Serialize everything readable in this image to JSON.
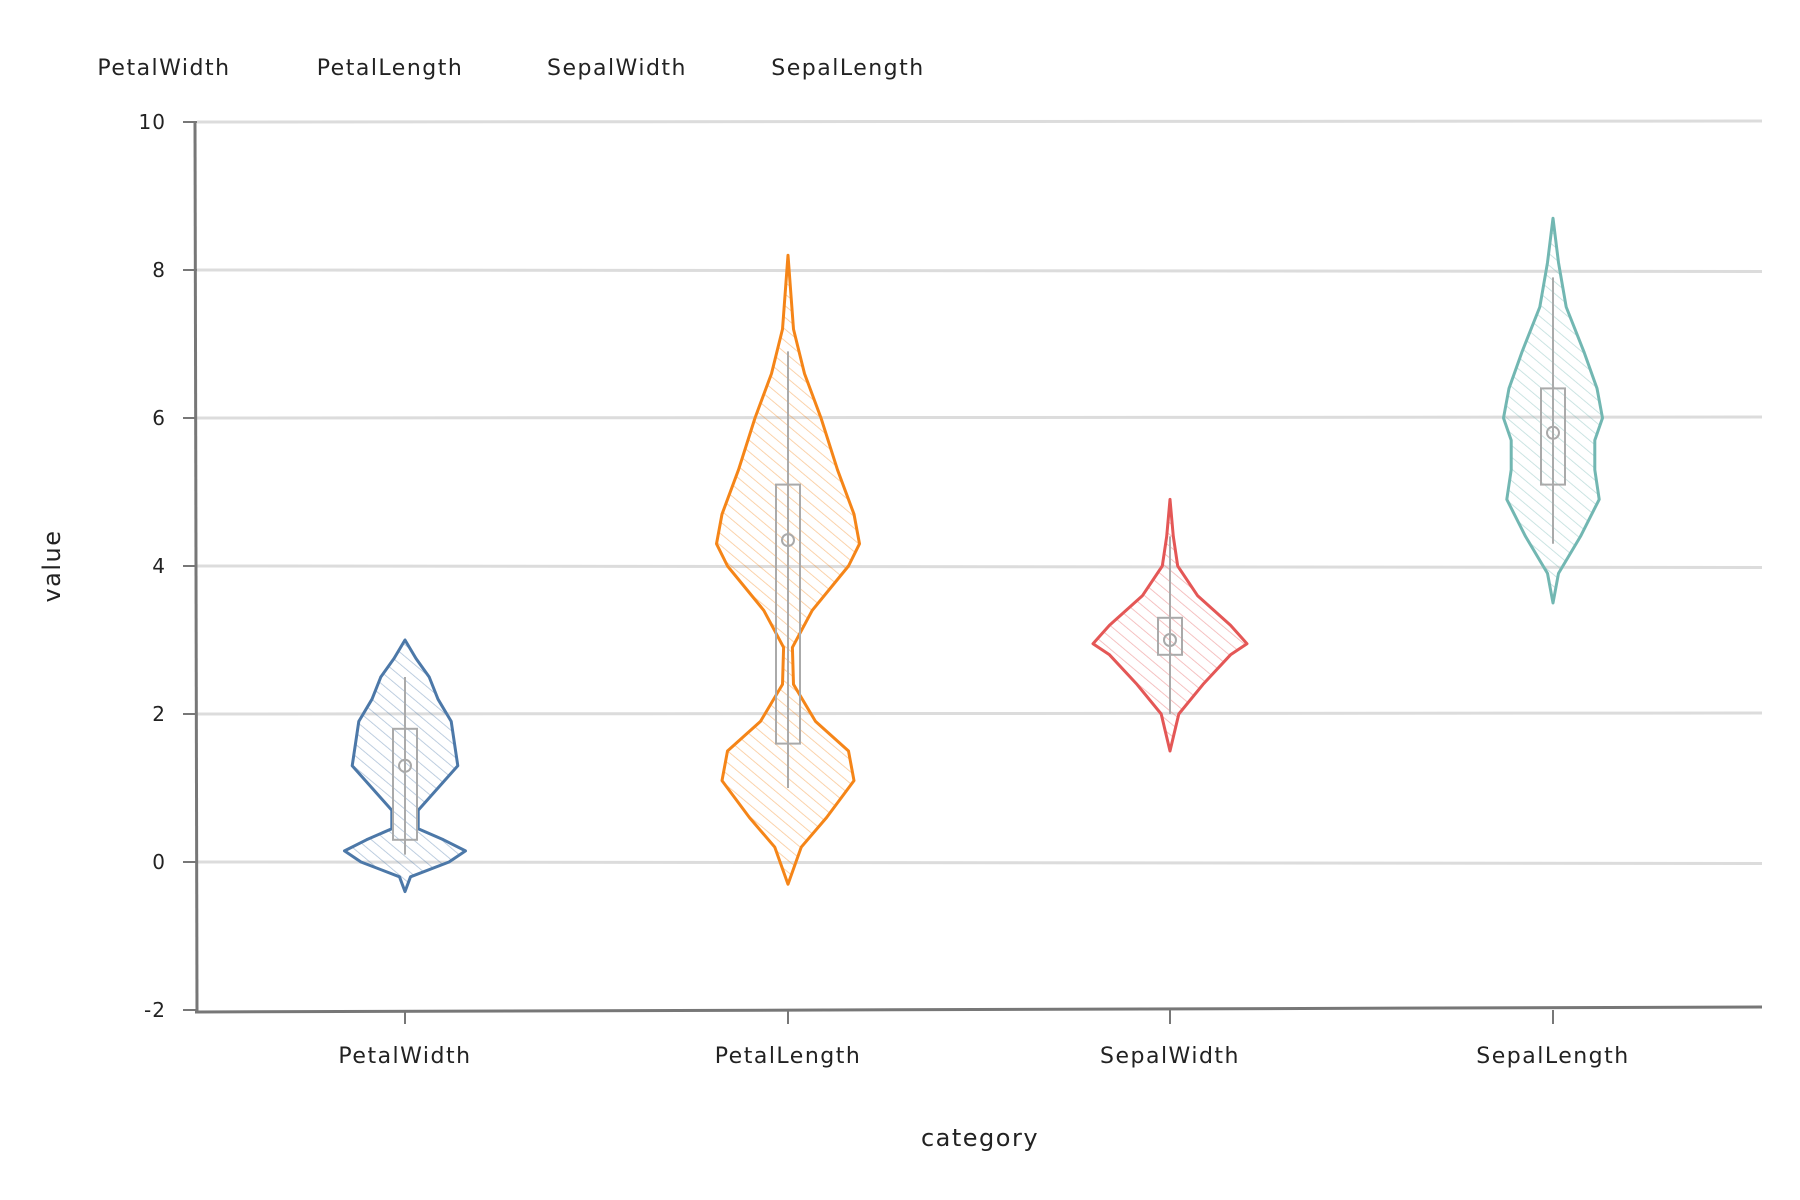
{
  "chart_data": {
    "type": "violin",
    "xlabel": "category",
    "ylabel": "value",
    "ylim": [
      -2,
      10
    ],
    "yticks": [
      "-2",
      "0",
      "2",
      "4",
      "6",
      "8",
      "10"
    ],
    "grid": true,
    "legend_position": "top-left",
    "categories": [
      "PetalWidth",
      "PetalLength",
      "SepalWidth",
      "SepalLength"
    ],
    "legend": [
      "PetalWidth",
      "PetalLength",
      "SepalWidth",
      "SepalLength"
    ],
    "series": [
      {
        "category": "PetalWidth",
        "color": "#4c78a8",
        "min": -0.4,
        "max": 3.0,
        "q1": 0.3,
        "median": 1.3,
        "q3": 1.8,
        "whisker_low": 0.1,
        "whisker_high": 2.5,
        "density": [
          [
            -0.4,
            0.0
          ],
          [
            -0.2,
            0.05
          ],
          [
            0.0,
            0.4
          ],
          [
            0.15,
            0.55
          ],
          [
            0.3,
            0.35
          ],
          [
            0.45,
            0.12
          ],
          [
            0.7,
            0.12
          ],
          [
            1.0,
            0.3
          ],
          [
            1.3,
            0.48
          ],
          [
            1.6,
            0.45
          ],
          [
            1.9,
            0.42
          ],
          [
            2.2,
            0.3
          ],
          [
            2.5,
            0.22
          ],
          [
            2.75,
            0.1
          ],
          [
            3.0,
            0.0
          ]
        ]
      },
      {
        "category": "PetalLength",
        "color": "#f58518",
        "min": -0.3,
        "max": 8.2,
        "q1": 1.6,
        "median": 4.35,
        "q3": 5.1,
        "whisker_low": 1.0,
        "whisker_high": 6.9,
        "density": [
          [
            -0.3,
            0.0
          ],
          [
            0.2,
            0.12
          ],
          [
            0.6,
            0.35
          ],
          [
            1.1,
            0.6
          ],
          [
            1.5,
            0.55
          ],
          [
            1.9,
            0.25
          ],
          [
            2.4,
            0.05
          ],
          [
            2.9,
            0.04
          ],
          [
            3.4,
            0.22
          ],
          [
            4.0,
            0.55
          ],
          [
            4.3,
            0.65
          ],
          [
            4.7,
            0.6
          ],
          [
            5.3,
            0.45
          ],
          [
            6.0,
            0.3
          ],
          [
            6.6,
            0.15
          ],
          [
            7.2,
            0.05
          ],
          [
            8.2,
            0.0
          ]
        ]
      },
      {
        "category": "SepalWidth",
        "color": "#e45756",
        "min": 1.5,
        "max": 4.9,
        "q1": 2.8,
        "median": 3.0,
        "q3": 3.3,
        "whisker_low": 2.0,
        "whisker_high": 4.4,
        "density": [
          [
            1.5,
            0.0
          ],
          [
            2.0,
            0.08
          ],
          [
            2.4,
            0.3
          ],
          [
            2.8,
            0.55
          ],
          [
            2.95,
            0.7
          ],
          [
            3.2,
            0.55
          ],
          [
            3.6,
            0.25
          ],
          [
            4.0,
            0.07
          ],
          [
            4.4,
            0.03
          ],
          [
            4.9,
            0.0
          ]
        ]
      },
      {
        "category": "SepalLength",
        "color": "#72b7b2",
        "min": 3.5,
        "max": 8.7,
        "q1": 5.1,
        "median": 5.8,
        "q3": 6.4,
        "whisker_low": 4.3,
        "whisker_high": 7.9,
        "density": [
          [
            3.5,
            0.0
          ],
          [
            3.9,
            0.05
          ],
          [
            4.4,
            0.25
          ],
          [
            4.9,
            0.42
          ],
          [
            5.3,
            0.38
          ],
          [
            5.7,
            0.38
          ],
          [
            6.0,
            0.45
          ],
          [
            6.4,
            0.4
          ],
          [
            6.9,
            0.28
          ],
          [
            7.5,
            0.12
          ],
          [
            8.1,
            0.05
          ],
          [
            8.7,
            0.0
          ]
        ]
      }
    ]
  }
}
